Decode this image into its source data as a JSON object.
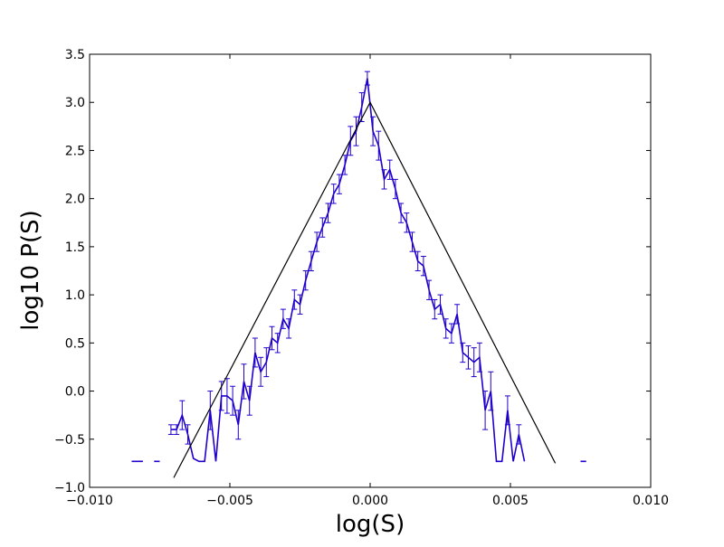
{
  "chart_data": {
    "type": "line",
    "title": "",
    "xlabel": "log(S)",
    "ylabel": "log10 P(S)",
    "xlim": [
      -0.01,
      0.01
    ],
    "ylim": [
      -1.0,
      3.5
    ],
    "xticks": [
      -0.01,
      -0.005,
      0.0,
      0.005,
      0.01
    ],
    "xtick_labels": [
      "−0.010",
      "−0.005",
      "0.000",
      "0.005",
      "0.010"
    ],
    "yticks": [
      -1.0,
      -0.5,
      0.0,
      0.5,
      1.0,
      1.5,
      2.0,
      2.5,
      3.0,
      3.5
    ],
    "ytick_labels": [
      "−1.0",
      "−0.5",
      "0.0",
      "0.5",
      "1.0",
      "1.5",
      "2.0",
      "2.5",
      "3.0",
      "3.5"
    ],
    "grid": false,
    "legend": "none",
    "series": [
      {
        "style": "line-with-errorbars",
        "color": "#1f00cc",
        "x": [
          -0.0085,
          -0.0083,
          -0.0081,
          -0.0079,
          -0.0077,
          -0.0075,
          -0.0073,
          -0.0071,
          -0.0069,
          -0.0067,
          -0.0065,
          -0.0063,
          -0.0061,
          -0.0059,
          -0.0057,
          -0.0055,
          -0.0053,
          -0.0051,
          -0.0049,
          -0.0047,
          -0.0045,
          -0.0043,
          -0.0041,
          -0.0039,
          -0.0037,
          -0.0035,
          -0.0033,
          -0.0031,
          -0.0029,
          -0.0027,
          -0.0025,
          -0.0023,
          -0.0021,
          -0.0019,
          -0.0017,
          -0.0015,
          -0.0013,
          -0.0011,
          -0.0009,
          -0.0007,
          -0.0005,
          -0.0003,
          -0.0001,
          0.0001,
          0.0003,
          0.0005,
          0.0007,
          0.0009,
          0.0011,
          0.0013,
          0.0015,
          0.0017,
          0.0019,
          0.0021,
          0.0023,
          0.0025,
          0.0027,
          0.0029,
          0.0031,
          0.0033,
          0.0035,
          0.0037,
          0.0039,
          0.0041,
          0.0043,
          0.0045,
          0.0047,
          0.0049,
          0.0051,
          0.0053,
          0.0055,
          0.0057,
          0.0059,
          0.0061,
          0.0063,
          0.0065,
          0.0067,
          0.0069,
          0.0071,
          0.0073,
          0.0075,
          0.0077,
          0.0079,
          0.0081,
          0.0083,
          0.0085,
          0.0087
        ],
        "y": [
          -0.73,
          -0.73,
          -0.73,
          null,
          -0.73,
          -0.73,
          null,
          -0.4,
          -0.4,
          -0.25,
          -0.45,
          -0.7,
          -0.73,
          -0.73,
          -0.2,
          -0.73,
          -0.05,
          -0.05,
          -0.1,
          -0.35,
          0.1,
          -0.1,
          0.4,
          0.2,
          0.3,
          0.55,
          0.5,
          0.75,
          0.65,
          0.95,
          0.9,
          1.15,
          1.35,
          1.55,
          1.7,
          1.85,
          2.05,
          2.15,
          2.35,
          2.6,
          2.7,
          2.95,
          3.25,
          2.7,
          2.55,
          2.2,
          2.3,
          2.1,
          1.85,
          1.75,
          1.55,
          1.35,
          1.3,
          1.05,
          0.85,
          0.9,
          0.65,
          0.6,
          0.8,
          0.4,
          0.35,
          0.3,
          0.35,
          -0.2,
          0.0,
          -0.73,
          -0.73,
          -0.2,
          -0.73,
          -0.45,
          -0.73,
          null,
          null,
          null,
          null,
          null,
          null,
          null,
          null,
          null,
          -0.73,
          -0.73,
          null,
          null,
          null,
          null,
          null
        ],
        "errors": [
          0,
          0,
          0,
          0,
          0,
          0,
          0,
          0.05,
          0.05,
          0.15,
          0.1,
          0,
          0,
          0,
          0.2,
          0,
          0.15,
          0.18,
          0.15,
          0.15,
          0.18,
          0.15,
          0.15,
          0.15,
          0.15,
          0.12,
          0.1,
          0.1,
          0.1,
          0.1,
          0.1,
          0.1,
          0.1,
          0.1,
          0.1,
          0.1,
          0.1,
          0.1,
          0.1,
          0.15,
          0.15,
          0.15,
          0.07,
          0.15,
          0.15,
          0.1,
          0.1,
          0.1,
          0.1,
          0.1,
          0.1,
          0.1,
          0.1,
          0.1,
          0.1,
          0.1,
          0.1,
          0.1,
          0.1,
          0.1,
          0.12,
          0.15,
          0.15,
          0.2,
          0.2,
          0,
          0,
          0.15,
          0,
          0.1,
          0,
          0,
          0,
          0,
          0,
          0,
          0,
          0,
          0,
          0,
          0,
          0,
          0,
          0,
          0,
          0,
          0
        ]
      },
      {
        "style": "line",
        "color": "#000000",
        "x": [
          -0.007,
          0.0,
          0.0066
        ],
        "y": [
          -0.9,
          3.0,
          -0.75
        ]
      }
    ]
  }
}
